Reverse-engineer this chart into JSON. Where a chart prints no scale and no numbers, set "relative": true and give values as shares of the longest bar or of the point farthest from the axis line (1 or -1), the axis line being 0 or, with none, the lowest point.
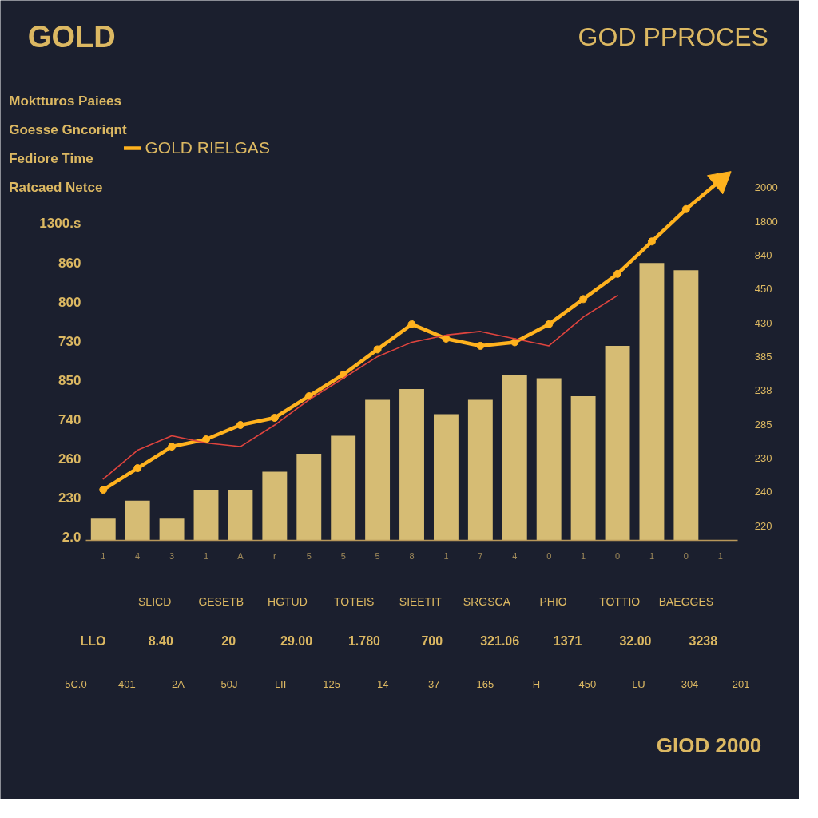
{
  "chart_data": {
    "type": "bar",
    "title": "GOLD",
    "subtitle": "GOD PPROCES",
    "relative": true,
    "legend": "top left",
    "marker": "circle",
    "categories": [
      "1",
      "4",
      "3",
      "1",
      "A",
      "r",
      "5",
      "5",
      "5",
      "8",
      "1",
      "7",
      "4",
      "0",
      "1",
      "0",
      "1",
      "0",
      "1"
    ],
    "series": [
      {
        "color": "#d6bc74",
        "values": [
          0.06,
          0.11,
          0.06,
          0.14,
          0.14,
          0.19,
          0.24,
          0.29,
          0.39,
          0.42,
          0.35,
          0.39,
          0.46,
          0.45,
          0.4,
          0.54,
          0.77,
          0.75,
          null
        ]
      },
      {
        "type": "line",
        "name": "GOLD RIELGAS",
        "color": "#ffb21e",
        "values": [
          0.14,
          0.2,
          0.26,
          0.28,
          0.32,
          0.34,
          0.4,
          0.46,
          0.53,
          0.6,
          0.56,
          0.54,
          0.55,
          0.6,
          0.67,
          0.74,
          0.83,
          0.92,
          1.0
        ]
      },
      {
        "type": "line",
        "color": "#e0443e",
        "marker": "none",
        "values": [
          0.17,
          0.25,
          0.29,
          0.27,
          0.26,
          0.32,
          0.39,
          0.45,
          0.51,
          0.55,
          0.57,
          0.58,
          0.56,
          0.54,
          0.62,
          0.68,
          null,
          null,
          null
        ]
      }
    ],
    "annotations": [
      "Moktturos Paiees",
      "Goesse Gncoriqnt",
      "Fediore Time",
      "Ratcaed Netce",
      "1300.s",
      "860",
      "800",
      "730",
      "850",
      "740",
      "260",
      "230",
      "2.0",
      "2000",
      "1800",
      "840",
      "450",
      "430",
      "385",
      "238",
      "285",
      "230",
      "240",
      "220",
      "SLICD",
      "GESETB",
      "HGTUD",
      "TOTEIS",
      "SIEETIT",
      "SRGSCA",
      "PHIO",
      "TOTTIO",
      "BAEGGES",
      "LLO",
      "8.40",
      "20",
      "29.00",
      "1.780",
      "700",
      "321.06",
      "1371",
      "32.00",
      "3238",
      "5C.0",
      "401",
      "2A",
      "50J",
      "LII",
      "125",
      "14",
      "37",
      "165",
      "H",
      "450",
      "LU",
      "304",
      "201",
      "GIOD 2000"
    ]
  }
}
